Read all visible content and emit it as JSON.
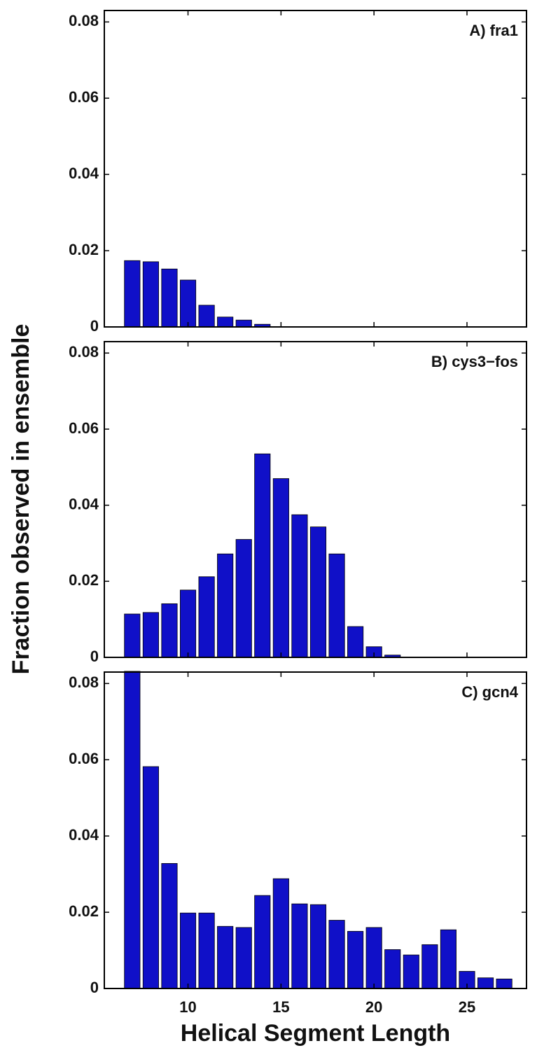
{
  "chart_data": [
    {
      "type": "bar",
      "title": "A) fra1",
      "x": [
        7,
        8,
        9,
        10,
        11,
        12,
        13,
        14
      ],
      "values": [
        0.0174,
        0.0171,
        0.0152,
        0.0123,
        0.0057,
        0.0026,
        0.0018,
        0.0007
      ],
      "color": "#1010c8",
      "xlim": [
        5.5,
        28.2
      ],
      "ylim": [
        0,
        0.083
      ],
      "yticks": [
        0,
        0.02,
        0.04,
        0.06,
        0.08
      ]
    },
    {
      "type": "bar",
      "title": "B) cys3−fos",
      "ylabel": "Fraction observed in ensemble",
      "x": [
        7,
        8,
        9,
        10,
        11,
        12,
        13,
        14,
        15,
        16,
        17,
        18,
        19,
        20,
        21
      ],
      "values": [
        0.0114,
        0.0118,
        0.0141,
        0.0177,
        0.0212,
        0.0272,
        0.031,
        0.0535,
        0.047,
        0.0375,
        0.0343,
        0.0272,
        0.0081,
        0.0028,
        0.0006
      ],
      "color": "#1010c8",
      "xlim": [
        5.5,
        28.2
      ],
      "ylim": [
        0,
        0.083
      ],
      "yticks": [
        0,
        0.02,
        0.04,
        0.06,
        0.08
      ]
    },
    {
      "type": "bar",
      "title": "C) gcn4",
      "xlabel": "Helical Segment Length",
      "x": [
        7,
        8,
        9,
        10,
        11,
        12,
        13,
        14,
        15,
        16,
        17,
        18,
        19,
        20,
        21,
        22,
        23,
        24,
        25,
        26,
        27
      ],
      "values": [
        0.0832,
        0.0582,
        0.0328,
        0.0198,
        0.0198,
        0.0163,
        0.016,
        0.0244,
        0.0288,
        0.0222,
        0.022,
        0.0179,
        0.015,
        0.016,
        0.0102,
        0.0088,
        0.0115,
        0.0154,
        0.0045,
        0.0028,
        0.0025
      ],
      "color": "#1010c8",
      "xlim": [
        5.5,
        28.2
      ],
      "xticks": [
        10,
        15,
        20,
        25
      ],
      "ylim": [
        0,
        0.083
      ],
      "yticks": [
        0,
        0.02,
        0.04,
        0.06,
        0.08
      ]
    }
  ]
}
